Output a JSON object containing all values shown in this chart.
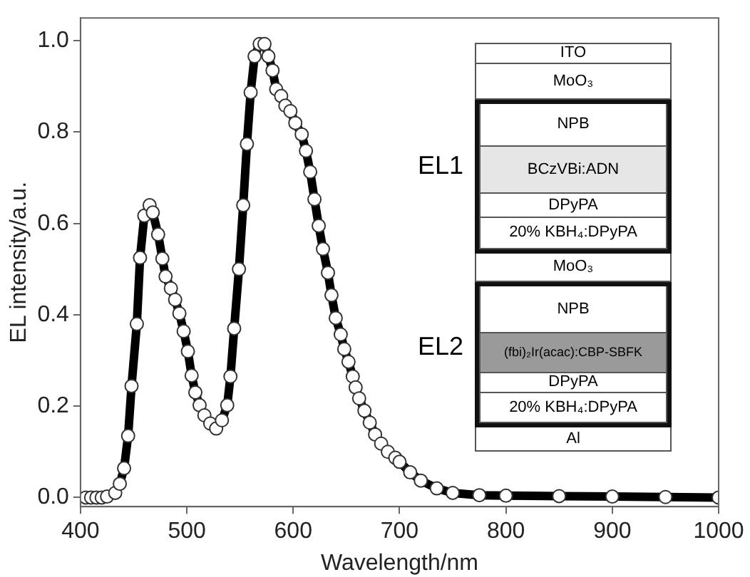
{
  "chart_data": {
    "type": "line",
    "xlabel": "Wavelength/nm",
    "ylabel": "EL intensity/a.u.",
    "xlim": [
      400,
      1000
    ],
    "xticks": [
      400,
      500,
      600,
      700,
      800,
      900,
      1000
    ],
    "ylim": [
      -0.02,
      1.05
    ],
    "yticks": [
      {
        "value": 0,
        "label": "0.0"
      },
      0.2,
      0.4,
      0.6,
      0.8,
      {
        "value": 1,
        "label": "1.0"
      }
    ],
    "grid": false,
    "legend": false,
    "marker": "circle",
    "line_style": "solid",
    "series": [
      {
        "color": "#000000",
        "x": [
          405,
          410,
          415,
          420,
          425,
          432.7,
          437,
          441,
          444.8,
          448,
          453,
          456,
          460,
          465,
          468,
          473,
          477,
          480,
          485,
          489,
          493,
          497,
          501,
          504.5,
          508,
          512,
          516.5,
          522,
          527.6,
          533,
          538,
          541,
          544.5,
          549,
          553,
          556.5,
          560,
          563.7,
          568.5,
          573,
          576.7,
          580.6,
          584,
          588.7,
          592.6,
          597.4,
          602,
          608,
          612,
          616,
          620,
          624,
          628,
          632.7,
          636,
          640,
          644.7,
          648,
          652,
          656,
          658.7,
          662,
          667,
          672,
          677,
          682.7,
          689,
          696,
          700,
          710,
          720,
          735,
          750,
          775,
          800,
          850,
          900,
          950,
          1000
        ],
        "values": [
          0,
          0,
          0,
          0,
          0.002,
          0.01,
          0.03,
          0.064,
          0.135,
          0.244,
          0.38,
          0.525,
          0.617,
          0.64,
          0.624,
          0.576,
          0.523,
          0.484,
          0.458,
          0.433,
          0.403,
          0.364,
          0.32,
          0.267,
          0.23,
          0.202,
          0.18,
          0.162,
          0.151,
          0.169,
          0.202,
          0.265,
          0.37,
          0.5,
          0.64,
          0.774,
          0.887,
          0.966,
          0.993,
          0.993,
          0.966,
          0.935,
          0.894,
          0.879,
          0.858,
          0.846,
          0.82,
          0.795,
          0.759,
          0.713,
          0.653,
          0.595,
          0.544,
          0.492,
          0.443,
          0.393,
          0.357,
          0.325,
          0.297,
          0.265,
          0.241,
          0.217,
          0.19,
          0.164,
          0.138,
          0.118,
          0.1,
          0.087,
          0.078,
          0.055,
          0.037,
          0.02,
          0.01,
          0.005,
          0.004,
          0.003,
          0.002,
          0.001,
          0
        ]
      }
    ],
    "annotations": [
      "ITO",
      "MoO₃",
      "NPB",
      "BCzVBi:ADN",
      "DPyPA",
      "20% KBH₄:DPyPA",
      "MoO₃",
      "NPB",
      "(fbi)₂Ir(acac):CBP-SBFK",
      "DPyPA",
      "20% KBH₄:DPyPA",
      "Al",
      "EL1",
      "EL2"
    ]
  }
}
